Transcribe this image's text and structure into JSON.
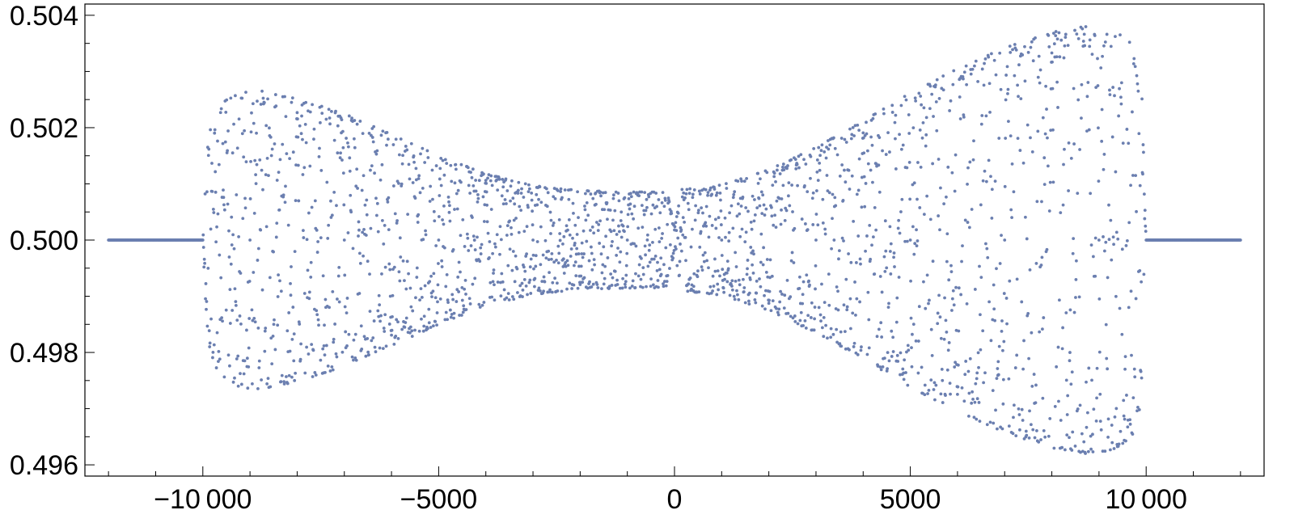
{
  "chart_data": {
    "type": "scatter",
    "title": "",
    "xlabel": "",
    "ylabel": "",
    "xlim": [
      -12500,
      12500
    ],
    "ylim": [
      0.4958,
      0.5042
    ],
    "grid": false,
    "legend": "none",
    "marker_color": "#6b7fb0",
    "x_ticks": [
      {
        "value": -10000,
        "label": "−10 000"
      },
      {
        "value": -5000,
        "label": "−5000"
      },
      {
        "value": 0,
        "label": "0"
      },
      {
        "value": 5000,
        "label": "5000"
      },
      {
        "value": 10000,
        "label": "10 000"
      }
    ],
    "y_ticks": [
      {
        "value": 0.496,
        "label": "0.496"
      },
      {
        "value": 0.498,
        "label": "0.498"
      },
      {
        "value": 0.5,
        "label": "0.500"
      },
      {
        "value": 0.502,
        "label": "0.502"
      },
      {
        "value": 0.504,
        "label": "0.504"
      }
    ],
    "series": [
      {
        "x_range": [
          -12000,
          12000
        ],
        "step": 8,
        "flat_value": 0.5,
        "active_range": [
          -10000,
          10000
        ],
        "upper_envelope": [
          [
            -10000,
            0.5
          ],
          [
            -9900,
            0.502
          ],
          [
            -9600,
            0.50245
          ],
          [
            -9200,
            0.50262
          ],
          [
            -8800,
            0.50266
          ],
          [
            -8000,
            0.50252
          ],
          [
            -7000,
            0.50225
          ],
          [
            -6000,
            0.50188
          ],
          [
            -5000,
            0.5015
          ],
          [
            -4000,
            0.50118
          ],
          [
            -3000,
            0.50097
          ],
          [
            -2000,
            0.50088
          ],
          [
            -1000,
            0.50086
          ],
          [
            -150,
            0.50085
          ],
          [
            0,
            0.5002
          ],
          [
            150,
            0.5009
          ],
          [
            1000,
            0.50098
          ],
          [
            2000,
            0.50125
          ],
          [
            3000,
            0.50165
          ],
          [
            4000,
            0.50212
          ],
          [
            5000,
            0.50262
          ],
          [
            6000,
            0.50305
          ],
          [
            7000,
            0.50342
          ],
          [
            8000,
            0.5037
          ],
          [
            8700,
            0.5038
          ],
          [
            9300,
            0.50374
          ],
          [
            9700,
            0.5035
          ],
          [
            9900,
            0.5029
          ],
          [
            10000,
            0.5
          ]
        ],
        "lower_envelope": [
          [
            -10000,
            0.5
          ],
          [
            -9900,
            0.498
          ],
          [
            -9600,
            0.49755
          ],
          [
            -9200,
            0.49738
          ],
          [
            -8800,
            0.49734
          ],
          [
            -8000,
            0.49748
          ],
          [
            -7000,
            0.49775
          ],
          [
            -6000,
            0.49812
          ],
          [
            -5000,
            0.4985
          ],
          [
            -4000,
            0.49882
          ],
          [
            -3000,
            0.49903
          ],
          [
            -2000,
            0.49912
          ],
          [
            -1000,
            0.49914
          ],
          [
            -150,
            0.49915
          ],
          [
            0,
            0.4998
          ],
          [
            150,
            0.4991
          ],
          [
            1000,
            0.49902
          ],
          [
            2000,
            0.49875
          ],
          [
            3000,
            0.49835
          ],
          [
            4000,
            0.49788
          ],
          [
            5000,
            0.49738
          ],
          [
            6000,
            0.49695
          ],
          [
            7000,
            0.49658
          ],
          [
            8000,
            0.4963
          ],
          [
            8700,
            0.4962
          ],
          [
            9300,
            0.49626
          ],
          [
            9700,
            0.4965
          ],
          [
            9900,
            0.4971
          ],
          [
            10000,
            0.5
          ]
        ],
        "gaps": [
          -9000,
          -8000,
          -7000,
          -6000,
          -5000,
          -4000,
          -3000,
          -2000,
          -1000,
          1000,
          2000,
          3000,
          4000,
          5000,
          6000,
          7000,
          8000,
          9000
        ]
      }
    ]
  }
}
